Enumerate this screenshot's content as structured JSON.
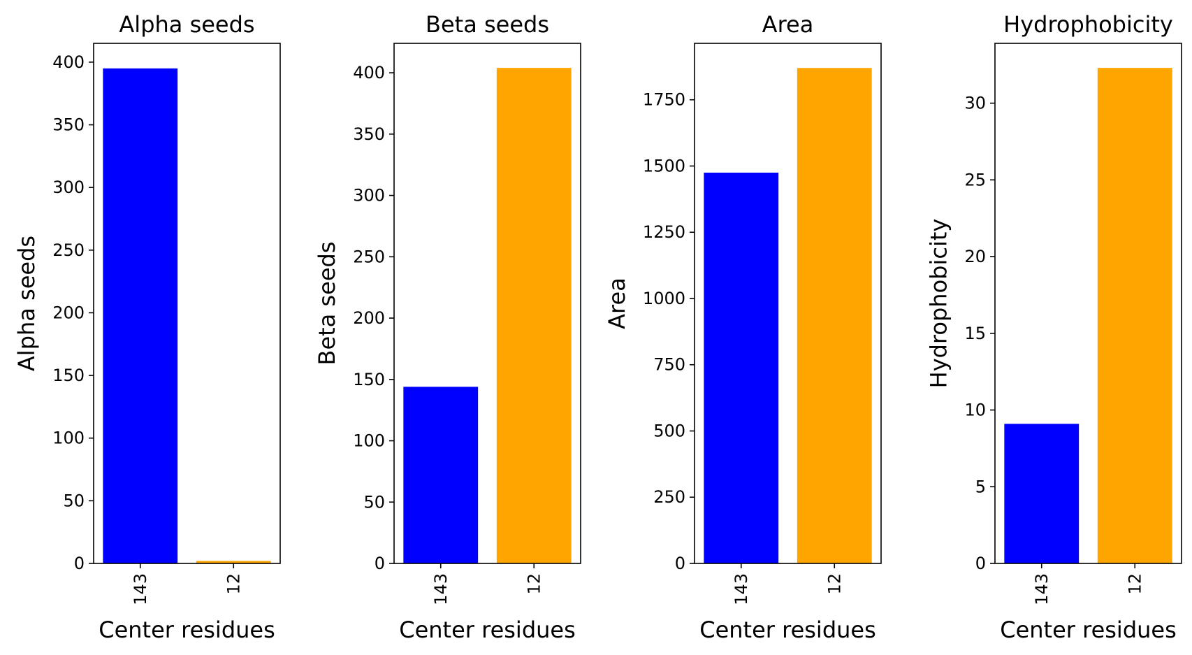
{
  "chart_data": [
    {
      "type": "bar",
      "title": "Alpha seeds",
      "xlabel": "Center residues",
      "ylabel": "Alpha seeds",
      "categories": [
        "143",
        "12"
      ],
      "values": [
        395,
        2
      ],
      "colors": [
        "#0000ff",
        "#ffa500"
      ],
      "ylim": [
        0,
        415
      ],
      "yticks": [
        0,
        50,
        100,
        150,
        200,
        250,
        300,
        350,
        400
      ],
      "xtick_rotation": 90,
      "grid": false,
      "legend": "none"
    },
    {
      "type": "bar",
      "title": "Beta seeds",
      "xlabel": "Center residues",
      "ylabel": "Beta seeds",
      "categories": [
        "143",
        "12"
      ],
      "values": [
        144,
        404
      ],
      "colors": [
        "#0000ff",
        "#ffa500"
      ],
      "ylim": [
        0,
        424
      ],
      "yticks": [
        0,
        50,
        100,
        150,
        200,
        250,
        300,
        350,
        400
      ],
      "xtick_rotation": 90,
      "grid": false,
      "legend": "none"
    },
    {
      "type": "bar",
      "title": "Area",
      "xlabel": "Center residues",
      "ylabel": "Area",
      "categories": [
        "143",
        "12"
      ],
      "values": [
        1475,
        1870
      ],
      "colors": [
        "#0000ff",
        "#ffa500"
      ],
      "ylim": [
        0,
        1963
      ],
      "yticks": [
        0,
        250,
        500,
        750,
        1000,
        1250,
        1500,
        1750
      ],
      "xtick_rotation": 90,
      "grid": false,
      "legend": "none"
    },
    {
      "type": "bar",
      "title": "Hydrophobicity",
      "xlabel": "Center residues",
      "ylabel": "Hydrophobicity",
      "categories": [
        "143",
        "12"
      ],
      "values": [
        9.1,
        32.3
      ],
      "colors": [
        "#0000ff",
        "#ffa500"
      ],
      "ylim": [
        0,
        33.9
      ],
      "yticks": [
        0,
        5,
        10,
        15,
        20,
        25,
        30
      ],
      "xtick_rotation": 90,
      "grid": false,
      "legend": "none"
    }
  ]
}
